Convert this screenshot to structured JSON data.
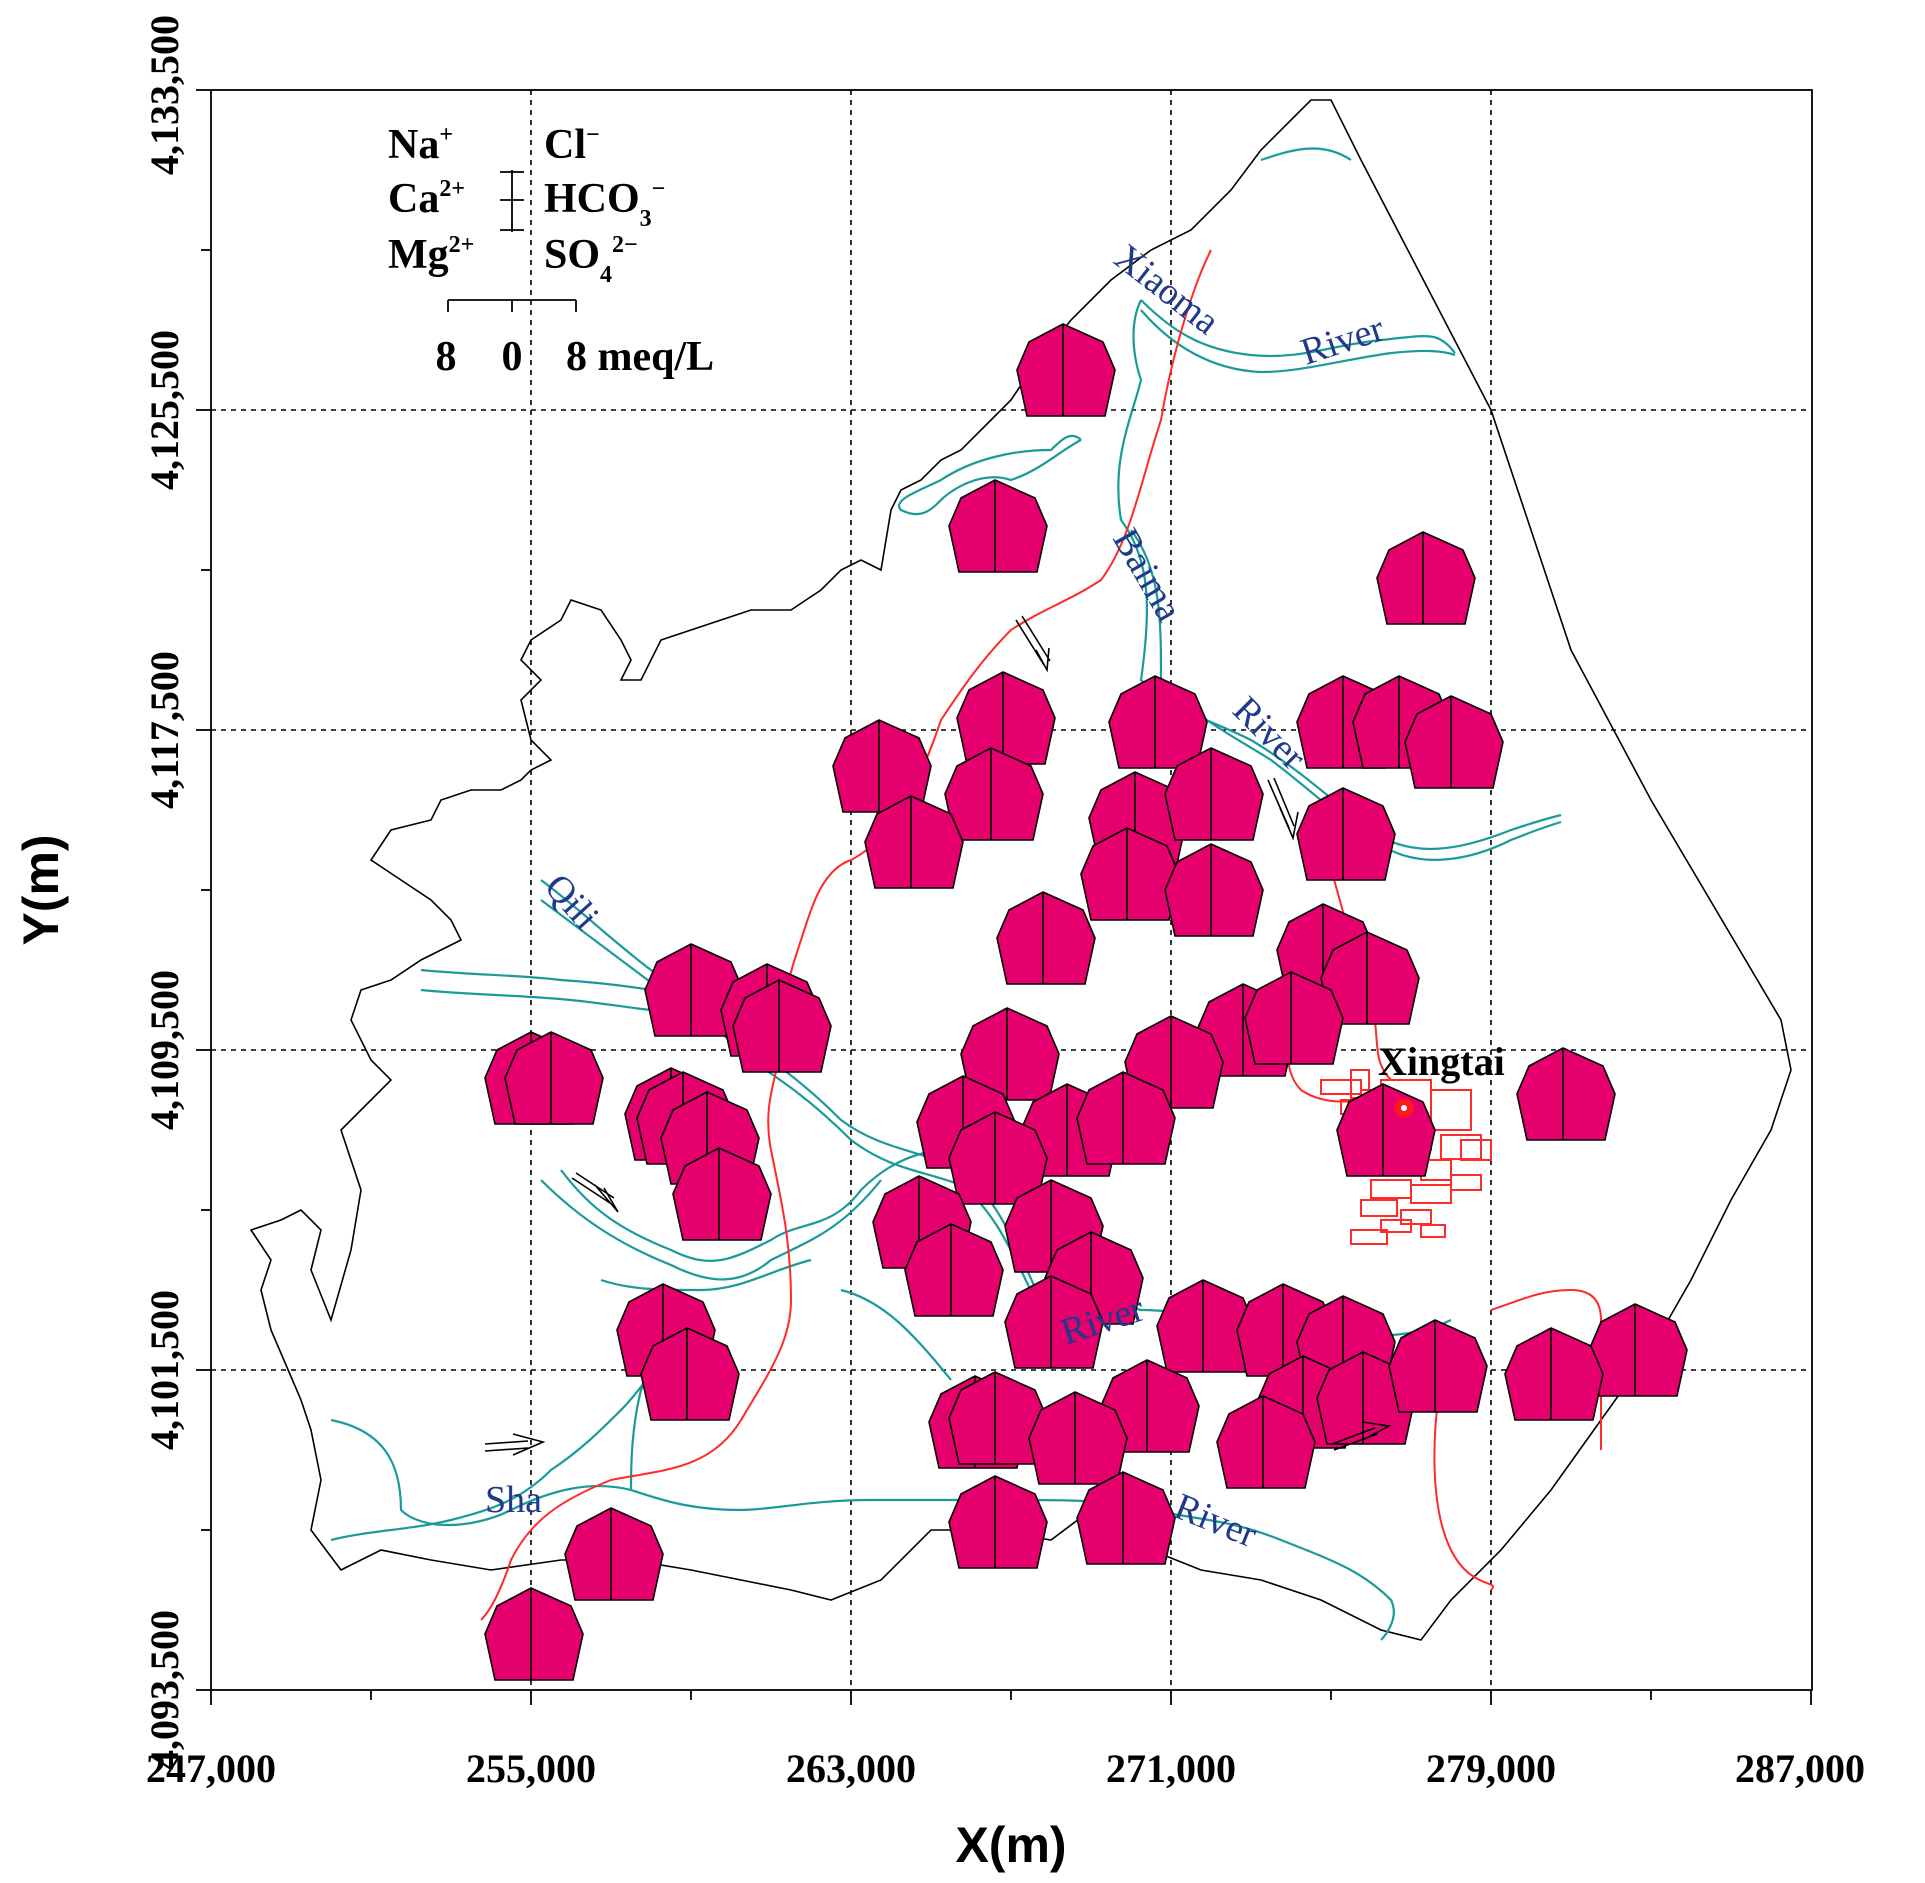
{
  "axes": {
    "x_title": "X(m)",
    "y_title": "Y(m)",
    "x_ticks": [
      "247,000",
      "255,000",
      "263,000",
      "271,000",
      "279,000",
      "287,000"
    ],
    "y_ticks": [
      "4,093,500",
      "4,101,500",
      "4,109,500",
      "4,117,500",
      "4,125,500",
      "4,133,500"
    ]
  },
  "legend": {
    "left_ions": [
      {
        "base": "Na",
        "sup": "+"
      },
      {
        "base": "Ca",
        "sup": "2+"
      },
      {
        "base": "Mg",
        "sup": "2+"
      }
    ],
    "right_ions": [
      {
        "base": "Cl",
        "sub": "",
        "sup": "−"
      },
      {
        "base": "HCO",
        "sub": "3",
        "sup": "−"
      },
      {
        "base": "SO",
        "sub": "4",
        "sup": "2−"
      }
    ],
    "scale_values": [
      "8",
      "0",
      "8 meq/L"
    ]
  },
  "labels": {
    "city": "Xingtai",
    "rivers": [
      {
        "id": "xiaoma",
        "text": "Xiaoma"
      },
      {
        "id": "river1",
        "text": "River"
      },
      {
        "id": "baima",
        "text": "Baima"
      },
      {
        "id": "river2",
        "text": "River"
      },
      {
        "id": "qili",
        "text": "Qili"
      },
      {
        "id": "river3",
        "text": "River"
      },
      {
        "id": "sha",
        "text": "Sha"
      },
      {
        "id": "river4",
        "text": "River"
      }
    ]
  },
  "colors": {
    "stiff_fill": "#e6006e",
    "river": "#1a9a9a",
    "boundary": "#000000",
    "road": "#ff2a2a",
    "river_label": "#1f3a8a"
  },
  "map_data": {
    "x_range": [
      247000,
      287000
    ],
    "y_range": [
      4093500,
      4133500
    ],
    "stiff_diagram_units": "meq/L",
    "stiff_diagrams": [
      {
        "x": 268300,
        "y": 4126500
      },
      {
        "x": 266600,
        "y": 4122600
      },
      {
        "x": 277300,
        "y": 4121300
      },
      {
        "x": 266800,
        "y": 4117800
      },
      {
        "x": 270600,
        "y": 4117700
      },
      {
        "x": 275300,
        "y": 4117700
      },
      {
        "x": 276700,
        "y": 4117700
      },
      {
        "x": 278000,
        "y": 4117200
      },
      {
        "x": 263700,
        "y": 4116600
      },
      {
        "x": 266500,
        "y": 4115900
      },
      {
        "x": 264500,
        "y": 4114700
      },
      {
        "x": 270100,
        "y": 4115300
      },
      {
        "x": 272000,
        "y": 4115900
      },
      {
        "x": 275300,
        "y": 4114900
      },
      {
        "x": 269900,
        "y": 4113900
      },
      {
        "x": 272000,
        "y": 4113500
      },
      {
        "x": 274800,
        "y": 4112000
      },
      {
        "x": 275900,
        "y": 4111300
      },
      {
        "x": 267800,
        "y": 4112300
      },
      {
        "x": 272800,
        "y": 4110000
      },
      {
        "x": 274000,
        "y": 4110300
      },
      {
        "x": 271000,
        "y": 4109200
      },
      {
        "x": 266900,
        "y": 4109400
      },
      {
        "x": 259000,
        "y": 4111000
      },
      {
        "x": 260900,
        "y": 4110500
      },
      {
        "x": 261200,
        "y": 4110100
      },
      {
        "x": 255000,
        "y": 4108800
      },
      {
        "x": 255500,
        "y": 4108800
      },
      {
        "x": 258500,
        "y": 4107900
      },
      {
        "x": 258800,
        "y": 4107800
      },
      {
        "x": 259400,
        "y": 4107300
      },
      {
        "x": 259700,
        "y": 4105900
      },
      {
        "x": 265800,
        "y": 4107700
      },
      {
        "x": 268400,
        "y": 4107500
      },
      {
        "x": 269800,
        "y": 4107800
      },
      {
        "x": 266600,
        "y": 4106800
      },
      {
        "x": 268000,
        "y": 4105100
      },
      {
        "x": 269000,
        "y": 4103800
      },
      {
        "x": 264700,
        "y": 4105200
      },
      {
        "x": 265500,
        "y": 4104000
      },
      {
        "x": 268000,
        "y": 4102700
      },
      {
        "x": 258300,
        "y": 4102500
      },
      {
        "x": 258900,
        "y": 4101400
      },
      {
        "x": 271800,
        "y": 4102600
      },
      {
        "x": 273800,
        "y": 4102500
      },
      {
        "x": 275300,
        "y": 4102200
      },
      {
        "x": 266100,
        "y": 4100200
      },
      {
        "x": 266600,
        "y": 4100300
      },
      {
        "x": 270400,
        "y": 4100600
      },
      {
        "x": 274300,
        "y": 4100700
      },
      {
        "x": 275800,
        "y": 4100800
      },
      {
        "x": 277600,
        "y": 4101600
      },
      {
        "x": 282600,
        "y": 4102000
      },
      {
        "x": 280500,
        "y": 4101400
      },
      {
        "x": 268600,
        "y": 4099800
      },
      {
        "x": 273300,
        "y": 4099700
      },
      {
        "x": 269800,
        "y": 4097800
      },
      {
        "x": 266600,
        "y": 4097700
      },
      {
        "x": 255000,
        "y": 4094900
      },
      {
        "x": 257000,
        "y": 4096900
      },
      {
        "x": 280800,
        "y": 4108400
      },
      {
        "x": 276300,
        "y": 4107500
      }
    ]
  }
}
